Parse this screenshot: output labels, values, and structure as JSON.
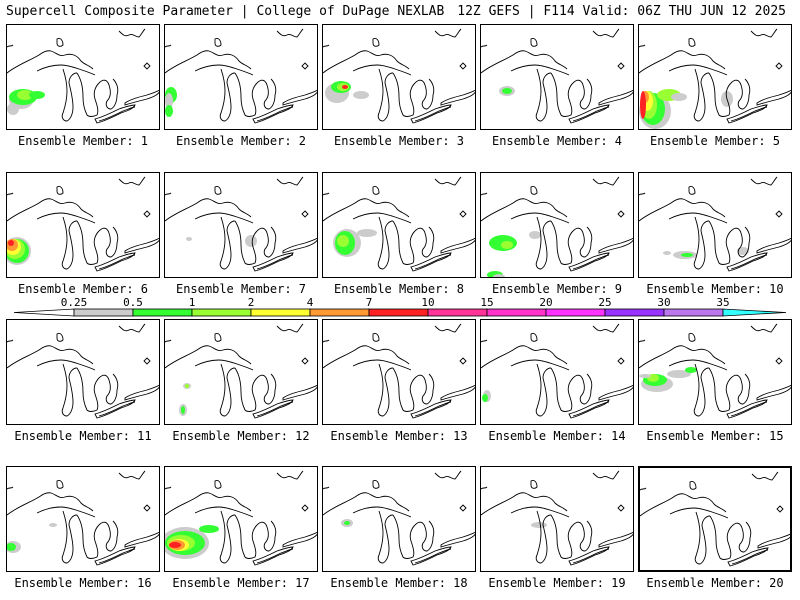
{
  "header": {
    "title": "Supercell Composite Parameter | College of DuPage NEXLAB",
    "run_info": "12Z GEFS | F114 Valid: 06Z THU JUN 12 2025"
  },
  "scale": {
    "labels": [
      "0.25",
      "0.5",
      "1",
      "2",
      "4",
      "7",
      "10",
      "15",
      "20",
      "25",
      "30",
      "35"
    ],
    "colors": {
      "0.25": "#cccccc",
      "0.5": "#33ff33",
      "1": "#99ff33",
      "2": "#ffff33",
      "4": "#ff9933",
      "7": "#ff2222",
      "10": "#ff3399",
      "15": "#ff33cc",
      "20": "#ff33ff",
      "25": "#9933ff",
      "30": "#bb77ee",
      "35": "#33ffff"
    }
  },
  "panels": [
    {
      "label": "Ensemble Member: 1",
      "member": 1
    },
    {
      "label": "Ensemble Member: 2",
      "member": 2
    },
    {
      "label": "Ensemble Member: 3",
      "member": 3
    },
    {
      "label": "Ensemble Member: 4",
      "member": 4
    },
    {
      "label": "Ensemble Member: 5",
      "member": 5
    },
    {
      "label": "Ensemble Member: 6",
      "member": 6
    },
    {
      "label": "Ensemble Member: 7",
      "member": 7
    },
    {
      "label": "Ensemble Member: 8",
      "member": 8
    },
    {
      "label": "Ensemble Member: 9",
      "member": 9
    },
    {
      "label": "Ensemble Member: 10",
      "member": 10
    },
    {
      "label": "Ensemble Member: 11",
      "member": 11
    },
    {
      "label": "Ensemble Member: 12",
      "member": 12
    },
    {
      "label": "Ensemble Member: 13",
      "member": 13
    },
    {
      "label": "Ensemble Member: 14",
      "member": 14
    },
    {
      "label": "Ensemble Member: 15",
      "member": 15
    },
    {
      "label": "Ensemble Member: 16",
      "member": 16
    },
    {
      "label": "Ensemble Member: 17",
      "member": 17
    },
    {
      "label": "Ensemble Member: 18",
      "member": 18
    },
    {
      "label": "Ensemble Member: 19",
      "member": 19
    },
    {
      "label": "Ensemble Member: 20",
      "member": 20
    }
  ],
  "active_member": 20
}
